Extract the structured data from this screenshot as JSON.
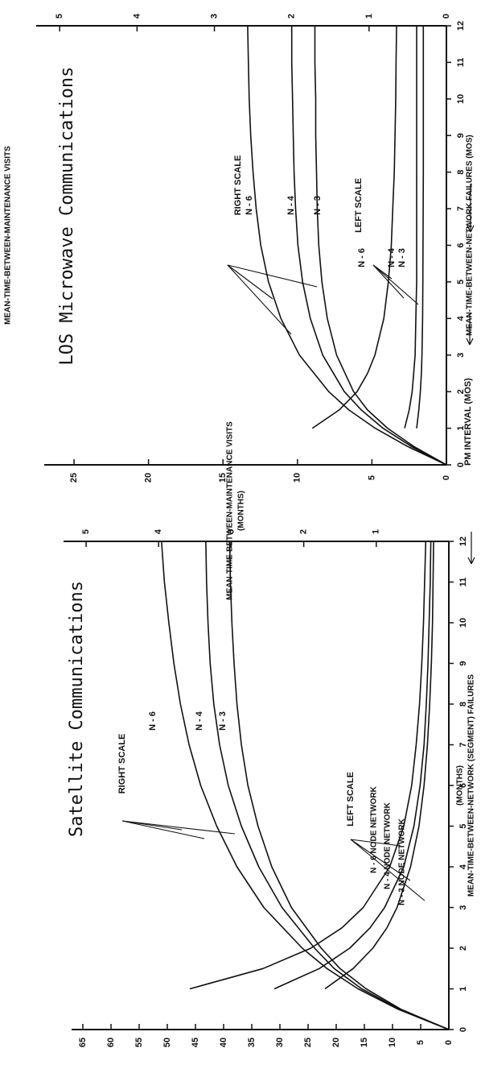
{
  "chart_data": [
    {
      "type": "line",
      "title": "Satellite Communications",
      "xlabel": "",
      "ylabel_left": "MEAN-TIME-BETWEEN-NETWORK (SEGMENT) FAILURES",
      "ylabel_left_units": "(MONTHS)",
      "ylabel_right": "MEAN-TIME-BETWEEN-MAINTENANCE VISITS",
      "ylabel_right_units": "(MONTHS)",
      "x_ticks": [
        "0",
        "1",
        "2",
        "3",
        "4",
        "5",
        "6",
        "7",
        "8",
        "9",
        "10",
        "11",
        "12"
      ],
      "y_left_ticks": [
        "0",
        "5",
        "10",
        "15",
        "20",
        "25",
        "30",
        "35",
        "40",
        "45",
        "50",
        "55",
        "60",
        "65"
      ],
      "y_right_ticks": [
        "1",
        "2",
        "3",
        "4",
        "5"
      ],
      "xlim": [
        0,
        12
      ],
      "ylim_left": [
        0,
        67
      ],
      "ylim_right": [
        0,
        5.2
      ],
      "grid": false,
      "annotations": {
        "right_scale": "RIGHT SCALE",
        "left_scale": "LEFT SCALE",
        "right_labels": [
          "N - 6",
          "N - 4",
          "N - 3"
        ],
        "left_labels": [
          "N - 6 NODE NETWORK",
          "N - 4 NODE NETWORK",
          "N - 3 NODE NETWORK"
        ]
      },
      "series": [
        {
          "name": "N - 6",
          "scale": "right",
          "x": [
            0,
            0.5,
            1,
            1.5,
            2,
            3,
            4,
            5,
            6,
            7,
            8,
            9,
            10,
            11,
            12
          ],
          "y": [
            0,
            0.7,
            1.25,
            1.68,
            2.02,
            2.55,
            2.92,
            3.2,
            3.42,
            3.58,
            3.7,
            3.79,
            3.86,
            3.92,
            3.96
          ]
        },
        {
          "name": "N - 4",
          "scale": "right",
          "x": [
            0,
            0.5,
            1,
            1.5,
            2,
            3,
            4,
            5,
            6,
            7,
            8,
            9,
            10,
            11,
            12
          ],
          "y": [
            0,
            0.68,
            1.2,
            1.58,
            1.85,
            2.3,
            2.62,
            2.86,
            3.04,
            3.16,
            3.24,
            3.29,
            3.32,
            3.34,
            3.35
          ]
        },
        {
          "name": "N - 3",
          "scale": "right",
          "x": [
            0,
            0.5,
            1,
            1.5,
            2,
            3,
            4,
            5,
            6,
            7,
            8,
            9,
            10,
            11,
            12
          ],
          "y": [
            0,
            0.66,
            1.14,
            1.5,
            1.76,
            2.17,
            2.44,
            2.63,
            2.77,
            2.86,
            2.92,
            2.96,
            2.99,
            3.01,
            3.02
          ]
        },
        {
          "name": "N - 6 NODE NETWORK",
          "scale": "left",
          "x": [
            1,
            1.5,
            2,
            2.5,
            3,
            4,
            5,
            6,
            7,
            8,
            9,
            10,
            11,
            12
          ],
          "y": [
            46,
            33,
            24.5,
            19,
            15.2,
            10.5,
            8,
            6.6,
            5.8,
            5.2,
            4.8,
            4.5,
            4.3,
            4.1
          ]
        },
        {
          "name": "N - 4 NODE NETWORK",
          "scale": "left",
          "x": [
            1,
            1.5,
            2,
            2.5,
            3,
            4,
            5,
            6,
            7,
            8,
            9,
            10,
            11,
            12
          ],
          "y": [
            31,
            23,
            17.6,
            14,
            11.4,
            8,
            6.2,
            5.1,
            4.4,
            4,
            3.7,
            3.5,
            3.3,
            3.2
          ]
        },
        {
          "name": "N - 3 NODE NETWORK",
          "scale": "left",
          "x": [
            1,
            1.5,
            2,
            2.5,
            3,
            4,
            5,
            6,
            7,
            8,
            9,
            10,
            11,
            12
          ],
          "y": [
            22,
            17,
            13.5,
            11,
            9.2,
            6.8,
            5.3,
            4.4,
            3.8,
            3.4,
            3.1,
            2.9,
            2.8,
            2.7
          ]
        }
      ]
    },
    {
      "type": "line",
      "title": "LOS Microwave Communications",
      "xlabel": "PM INTERVAL (MOS)",
      "ylabel_left": "MEAN-TIME-BETWEEN-NETWORK FAILURES (MOS)",
      "ylabel_right": "MEAN-TIME-BETWEEN-MAINTENANCE VISITS",
      "x_ticks": [
        "0",
        "1",
        "2",
        "3",
        "4",
        "5",
        "6",
        "7",
        "8",
        "9",
        "10",
        "11",
        "12"
      ],
      "y_left_ticks": [
        "0",
        "5",
        "10",
        "15",
        "20",
        "25"
      ],
      "y_right_ticks": [
        "0",
        "1",
        "2",
        "3",
        "4",
        "5"
      ],
      "xlim": [
        0,
        12
      ],
      "ylim_left": [
        0,
        27
      ],
      "ylim_right": [
        0,
        5.2
      ],
      "grid": false,
      "annotations": {
        "right_scale": "RIGHT SCALE",
        "left_scale": "LEFT SCALE",
        "right_labels": [
          "N - 6",
          "N - 4",
          "N - 3"
        ],
        "left_labels": [
          "N - 6",
          "N - 4",
          "N - 3"
        ]
      },
      "series": [
        {
          "name": "N - 6",
          "scale": "right",
          "x": [
            0,
            0.5,
            1,
            1.5,
            2,
            3,
            4,
            5,
            6,
            7,
            8,
            9,
            10,
            11,
            12
          ],
          "y": [
            0,
            0.5,
            0.92,
            1.26,
            1.52,
            1.9,
            2.14,
            2.3,
            2.4,
            2.46,
            2.5,
            2.53,
            2.55,
            2.56,
            2.57
          ]
        },
        {
          "name": "N - 4",
          "scale": "right",
          "x": [
            0,
            0.5,
            1,
            1.5,
            2,
            3,
            4,
            5,
            6,
            7,
            8,
            9,
            10,
            11,
            12
          ],
          "y": [
            0,
            0.45,
            0.82,
            1.1,
            1.32,
            1.6,
            1.76,
            1.86,
            1.92,
            1.95,
            1.97,
            1.98,
            1.99,
            2,
            2
          ]
        },
        {
          "name": "N - 3",
          "scale": "right",
          "x": [
            0,
            0.5,
            1,
            1.5,
            2,
            3,
            4,
            5,
            6,
            7,
            8,
            9,
            10,
            11,
            12
          ],
          "y": [
            0,
            0.42,
            0.76,
            1.02,
            1.2,
            1.42,
            1.54,
            1.61,
            1.65,
            1.67,
            1.68,
            1.69,
            1.69,
            1.7,
            1.7
          ]
        },
        {
          "name": "N - 6",
          "scale": "left",
          "x": [
            1,
            1.5,
            2,
            2.5,
            3,
            4,
            5,
            6,
            7,
            8,
            9,
            10,
            11,
            12
          ],
          "y": [
            9,
            7.2,
            6,
            5.3,
            4.8,
            4.2,
            3.9,
            3.7,
            3.6,
            3.5,
            3.45,
            3.4,
            3.38,
            3.35
          ]
        },
        {
          "name": "N - 4",
          "scale": "left",
          "x": [
            1,
            1.5,
            2,
            2.5,
            3,
            4,
            5,
            6,
            7,
            8,
            9,
            10,
            11,
            12
          ],
          "y": [
            2.8,
            2.5,
            2.3,
            2.2,
            2.1,
            2.05,
            2,
            2,
            2,
            2,
            2,
            2,
            2,
            2
          ]
        },
        {
          "name": "N - 3",
          "scale": "left",
          "x": [
            1,
            1.5,
            2,
            2.5,
            3,
            4,
            5,
            6,
            7,
            8,
            9,
            10,
            11,
            12
          ],
          "y": [
            2,
            1.85,
            1.75,
            1.68,
            1.64,
            1.6,
            1.58,
            1.57,
            1.56,
            1.55,
            1.55,
            1.55,
            1.55,
            1.55
          ]
        }
      ]
    }
  ]
}
